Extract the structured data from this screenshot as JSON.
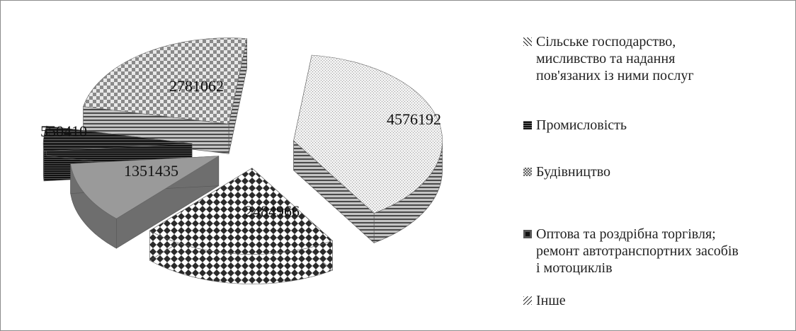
{
  "chart_data": {
    "type": "pie",
    "title": "",
    "slices": [
      {
        "label": "Сільське господарство, мисливство та надання пов'язаних із  ними послуг",
        "value": 4576192,
        "value_label": "4576192"
      },
      {
        "label": "Оптова та роздрібна торгівля; ремонт автотранспортних засобів і мотоциклів",
        "value": 2484966,
        "value_label": "2484966"
      },
      {
        "label": "Будівництво",
        "value": 1351435,
        "value_label": "1351435"
      },
      {
        "label": "Промисловість",
        "value": 550410,
        "value_label": "550410"
      },
      {
        "label": "Інше",
        "value": 2781062,
        "value_label": "2781062"
      }
    ],
    "style": "3d-exploded",
    "legend": {
      "placement": "right",
      "items": [
        "Сільське господарство,\nмисливство та надання\nпов'язаних із  ними послуг",
        "Промисловість",
        "Будівництво",
        "Оптова та роздрібна торгівля;\nремонт автотранспортних засобів\nі мотоциклів",
        "Інше"
      ]
    }
  }
}
